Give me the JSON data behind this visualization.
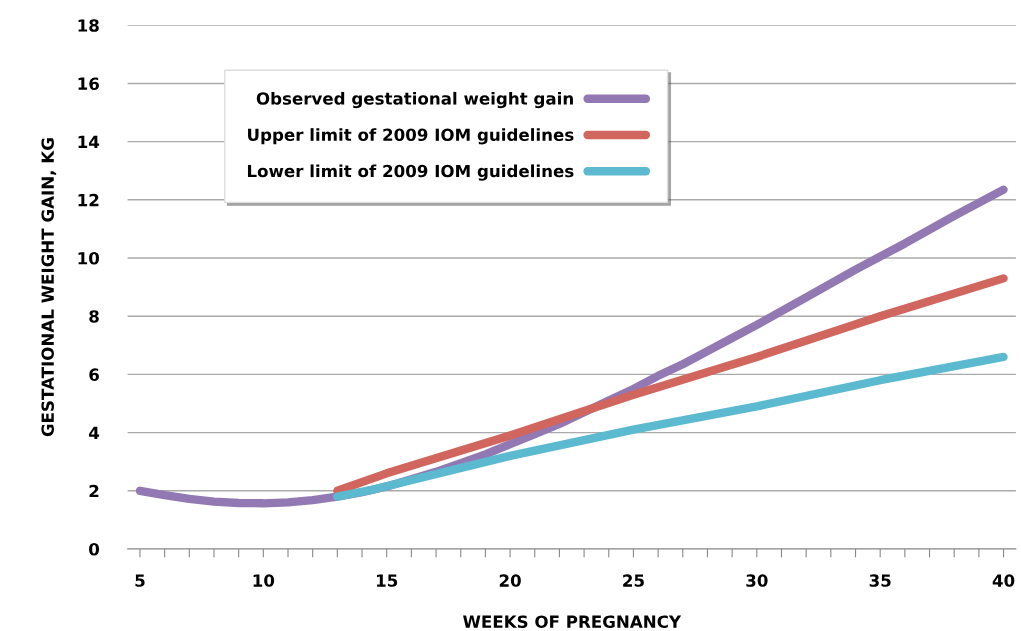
{
  "chart_data": {
    "type": "line",
    "xlabel": "WEEKS OF PREGNANCY",
    "ylabel": "GESTATIONAL WEIGHT GAIN, KG",
    "xlim": [
      4.5,
      40.5
    ],
    "ylim": [
      0,
      18
    ],
    "xticks": [
      5,
      {
        "value": 6,
        "label": null
      },
      {
        "value": 7,
        "label": null
      },
      {
        "value": 8,
        "label": null
      },
      {
        "value": 9,
        "label": null
      },
      10,
      {
        "value": 11,
        "label": null
      },
      {
        "value": 12,
        "label": null
      },
      {
        "value": 13,
        "label": null
      },
      {
        "value": 14,
        "label": null
      },
      15,
      {
        "value": 16,
        "label": null
      },
      {
        "value": 17,
        "label": null
      },
      {
        "value": 18,
        "label": null
      },
      {
        "value": 19,
        "label": null
      },
      20,
      {
        "value": 21,
        "label": null
      },
      {
        "value": 22,
        "label": null
      },
      {
        "value": 23,
        "label": null
      },
      {
        "value": 24,
        "label": null
      },
      25,
      {
        "value": 26,
        "label": null
      },
      {
        "value": 27,
        "label": null
      },
      {
        "value": 28,
        "label": null
      },
      {
        "value": 29,
        "label": null
      },
      30,
      {
        "value": 31,
        "label": null
      },
      {
        "value": 32,
        "label": null
      },
      {
        "value": 33,
        "label": null
      },
      {
        "value": 34,
        "label": null
      },
      35,
      {
        "value": 36,
        "label": null
      },
      {
        "value": 37,
        "label": null
      },
      {
        "value": 38,
        "label": null
      },
      {
        "value": 39,
        "label": null
      },
      40
    ],
    "yticks": [
      0,
      2,
      4,
      6,
      8,
      10,
      12,
      14,
      16,
      18
    ],
    "grid": "y",
    "legend": "top left",
    "marker": "none",
    "line_style": "solid",
    "series": [
      {
        "name": "Observed gestational weight gain",
        "color": "#9279b4",
        "x": [
          5,
          6,
          7,
          8,
          9,
          10,
          11,
          12,
          13,
          14,
          15,
          16,
          17,
          18,
          19,
          20,
          21,
          22,
          23,
          24,
          25,
          26,
          27,
          28,
          29,
          30,
          32,
          34,
          36,
          38,
          40
        ],
        "values": [
          2.0,
          1.85,
          1.72,
          1.63,
          1.58,
          1.57,
          1.6,
          1.68,
          1.8,
          1.95,
          2.15,
          2.4,
          2.65,
          2.95,
          3.25,
          3.6,
          3.95,
          4.3,
          4.7,
          5.1,
          5.5,
          5.95,
          6.35,
          6.8,
          7.25,
          7.7,
          8.65,
          9.6,
          10.5,
          11.45,
          12.35
        ]
      },
      {
        "name": "Upper limit of 2009 IOM guidelines",
        "color": "#d0665e",
        "x": [
          13,
          15,
          20,
          25,
          30,
          35,
          40
        ],
        "values": [
          2.0,
          2.6,
          3.9,
          5.3,
          6.6,
          8.0,
          9.3
        ]
      },
      {
        "name": "Lower limit of 2009 IOM guidelines",
        "color": "#5bbad0",
        "x": [
          13,
          14.5,
          20,
          25,
          30,
          35,
          40
        ],
        "values": [
          1.8,
          2.05,
          3.2,
          4.1,
          4.9,
          5.8,
          6.6
        ]
      }
    ]
  }
}
